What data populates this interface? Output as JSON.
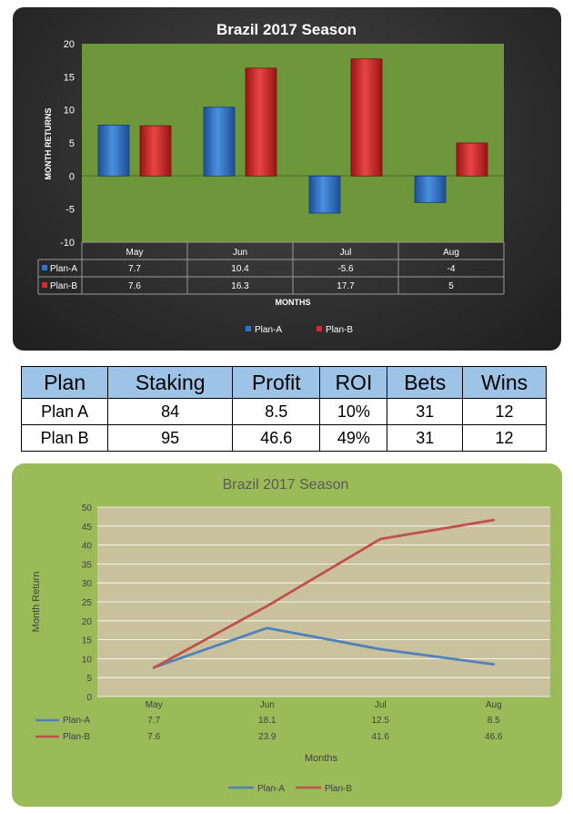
{
  "colors": {
    "plan_a": "#2e75d0",
    "plan_b": "#d42a2a",
    "bar_plot_bg": "#6e963a",
    "line_plot_bg": "#c9c29c",
    "line_plan_a": "#4f81bd",
    "line_plan_b": "#c0504d",
    "table_header": "#9dc3e6"
  },
  "table": {
    "headers": [
      "Plan",
      "Staking",
      "Profit",
      "ROI",
      "Bets",
      "Wins"
    ],
    "rows": [
      [
        "Plan A",
        "84",
        "8.5",
        "10%",
        "31",
        "12"
      ],
      [
        "Plan B",
        "95",
        "46.6",
        "49%",
        "31",
        "12"
      ]
    ]
  },
  "chart_data": [
    {
      "type": "bar",
      "title": "Brazil  2017 Season",
      "ylabel": "MONTH RETURNS",
      "xlabel": "MONTHS",
      "categories": [
        "May",
        "Jun",
        "Jul",
        "Aug"
      ],
      "ylim": [
        -10,
        20
      ],
      "yticks": [
        20,
        15,
        10,
        5,
        0,
        -5,
        -10
      ],
      "grid": false,
      "legend": "bottom",
      "series": [
        {
          "name": "Plan-A",
          "values": [
            7.7,
            10.4,
            -5.6,
            -4
          ],
          "labels": [
            "7.7",
            "10.4",
            "-5.6",
            "-4"
          ],
          "color": "#2e75d0",
          "legend_icon": "square-icon"
        },
        {
          "name": "Plan-B",
          "values": [
            7.6,
            16.3,
            17.7,
            5
          ],
          "labels": [
            "7.6",
            "16.3",
            "17.7",
            "5"
          ],
          "color": "#d42a2a",
          "legend_icon": "square-icon"
        }
      ]
    },
    {
      "type": "line",
      "title": "Brazil 2017 Season",
      "ylabel": "Month Return",
      "xlabel": "Months",
      "categories": [
        "May",
        "Jun",
        "Jul",
        "Aug"
      ],
      "ylim": [
        0,
        50
      ],
      "yticks": [
        50,
        45,
        40,
        35,
        30,
        25,
        20,
        15,
        10,
        5,
        0
      ],
      "grid": true,
      "legend": "bottom",
      "series": [
        {
          "name": "Plan-A",
          "values": [
            7.7,
            18.1,
            12.5,
            8.5
          ],
          "labels": [
            "7.7",
            "18.1",
            "12.5",
            "8.5"
          ],
          "color": "#4f81bd",
          "legend_icon": "line-icon"
        },
        {
          "name": "Plan-B",
          "values": [
            7.6,
            23.9,
            41.6,
            46.6
          ],
          "labels": [
            "7.6",
            "23.9",
            "41.6",
            "46.6"
          ],
          "color": "#c0504d",
          "legend_icon": "line-icon"
        }
      ]
    }
  ]
}
